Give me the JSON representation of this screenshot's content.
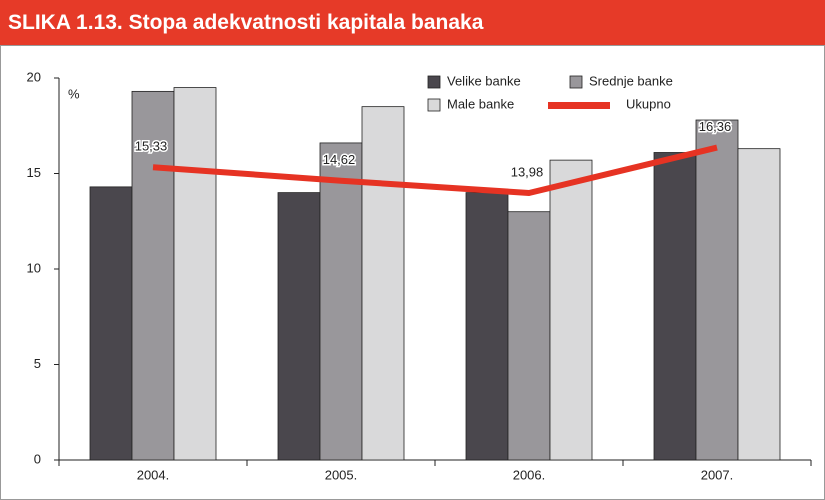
{
  "chart_data": {
    "type": "bar",
    "title": "SLIKA 1.13. Stopa adekvatnosti kapitala banaka",
    "ylabel": "%",
    "categories": [
      "2004.",
      "2005.",
      "2006.",
      "2007."
    ],
    "series": [
      {
        "name": "Velike banke",
        "color": "#4a474d",
        "values": [
          14.3,
          14.0,
          14.0,
          16.1
        ]
      },
      {
        "name": "Srednje banke",
        "color": "#99979b",
        "values": [
          19.3,
          16.6,
          13.0,
          17.8
        ]
      },
      {
        "name": "Male banke",
        "color": "#d9d9da",
        "values": [
          19.5,
          18.5,
          15.7,
          16.3
        ]
      },
      {
        "name": "Ukupno",
        "color": "#e63323",
        "type": "line",
        "values": [
          15.33,
          14.62,
          13.98,
          16.36
        ],
        "value_labels": [
          "15,33",
          "14,62",
          "13,98",
          "16,36"
        ]
      }
    ],
    "ylim": [
      0,
      20
    ],
    "yticks": [
      0,
      5,
      10,
      15,
      20
    ],
    "grid": false
  }
}
